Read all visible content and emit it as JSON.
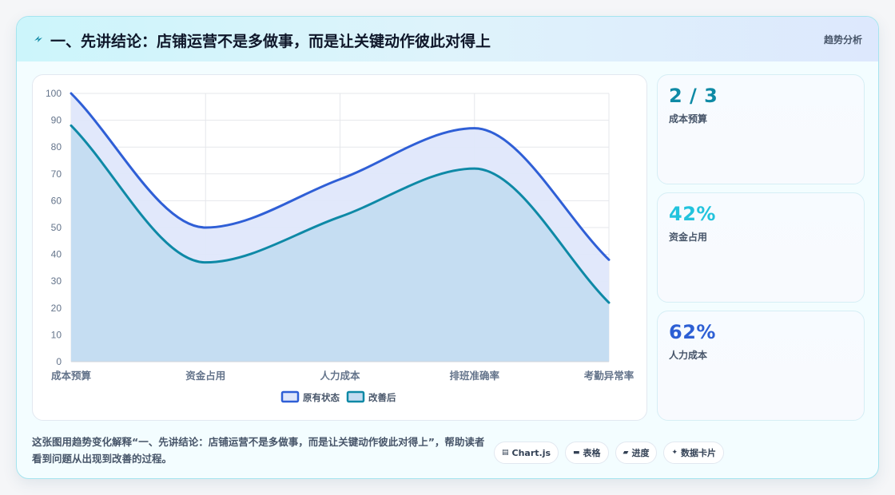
{
  "header": {
    "title": "一、先讲结论：店铺运营不是多做事，而是让关键动作彼此对得上",
    "tag": "趋势分析"
  },
  "chart_data": {
    "type": "area",
    "categories": [
      "成本预算",
      "资金占用",
      "人力成本",
      "排班准确率",
      "考勤异常率"
    ],
    "ylim": [
      0,
      100
    ],
    "yticks": [
      0,
      10,
      20,
      30,
      40,
      50,
      60,
      70,
      80,
      90,
      100
    ],
    "legend_position": "bottom",
    "grid": true,
    "series": [
      {
        "name": "原有状态",
        "values": [
          100,
          50,
          68,
          87,
          38
        ],
        "color": "#2f5fd6",
        "fill": "#dfe7fb"
      },
      {
        "name": "改善后",
        "values": [
          88,
          37,
          54,
          72,
          22
        ],
        "color": "#0e89a6",
        "fill": "#c3dcf1"
      }
    ]
  },
  "kpis": [
    {
      "value": "2 / 3",
      "label": "成本预算",
      "color": "#0e8aa5"
    },
    {
      "value": "42%",
      "label": "资金占用",
      "color": "#22c3dd"
    },
    {
      "value": "62%",
      "label": "人力成本",
      "color": "#2d5fd4"
    }
  ],
  "footer": {
    "text": "这张图用趋势变化解释“一、先讲结论：店铺运营不是多做事，而是让关键动作彼此对得上”，帮助读者看到问题从出现到改善的过程。",
    "pills": [
      {
        "icon": "chart-icon",
        "glyph": "▤",
        "label": "Chart.js"
      },
      {
        "icon": "table-icon",
        "glyph": "▬",
        "label": "表格"
      },
      {
        "icon": "progress-icon",
        "glyph": "▰",
        "label": "进度"
      },
      {
        "icon": "sparkle-icon",
        "glyph": "✦",
        "label": "数据卡片"
      }
    ]
  }
}
